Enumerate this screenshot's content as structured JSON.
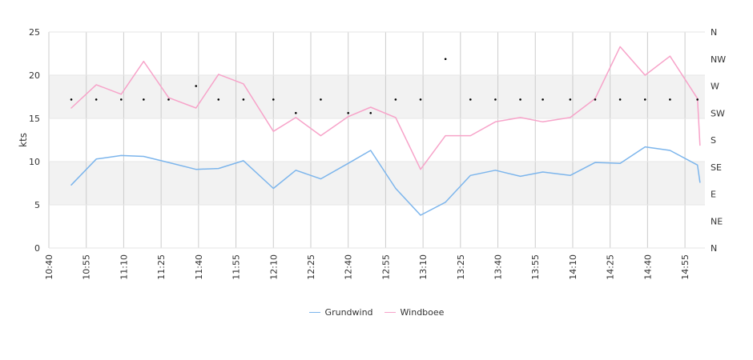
{
  "chart_data": {
    "type": "line",
    "ylabel": "kts",
    "ylim": [
      0,
      25
    ],
    "yticks": [
      0,
      5,
      10,
      15,
      20,
      25
    ],
    "bands": [
      [
        5,
        10
      ],
      [
        15,
        20
      ]
    ],
    "xlim": [
      "10:40",
      "15:03"
    ],
    "xticks": [
      "10:40",
      "10:55",
      "11:10",
      "11:25",
      "11:40",
      "11:55",
      "12:10",
      "12:25",
      "12:40",
      "12:55",
      "13:10",
      "13:25",
      "13:40",
      "13:55",
      "14:10",
      "14:25",
      "14:40",
      "14:55"
    ],
    "grid": {
      "vertical": true,
      "horizontal": true
    },
    "legend_position": "bottom-center",
    "series": [
      {
        "name": "Grundwind",
        "color": "#7cb5ec",
        "x": [
          "10:49",
          "10:59",
          "11:09",
          "11:18",
          "11:28",
          "11:39",
          "11:48",
          "11:58",
          "12:10",
          "12:19",
          "12:29",
          "12:40",
          "12:49",
          "12:59",
          "13:09",
          "13:19",
          "13:29",
          "13:39",
          "13:49",
          "13:58",
          "14:09",
          "14:19",
          "14:29",
          "14:39",
          "14:49",
          "15:00",
          "15:01"
        ],
        "values": [
          7.3,
          10.3,
          10.7,
          10.6,
          9.9,
          9.1,
          9.2,
          10.1,
          6.9,
          9.0,
          8.0,
          9.8,
          11.3,
          6.9,
          3.8,
          5.3,
          8.4,
          9.0,
          8.3,
          8.8,
          8.4,
          9.9,
          9.8,
          11.7,
          11.3,
          9.6,
          7.6
        ]
      },
      {
        "name": "Windboee",
        "color": "#f7a3c9",
        "x": [
          "10:49",
          "10:59",
          "11:09",
          "11:18",
          "11:28",
          "11:39",
          "11:48",
          "11:58",
          "12:10",
          "12:19",
          "12:29",
          "12:40",
          "12:49",
          "12:59",
          "13:09",
          "13:19",
          "13:29",
          "13:39",
          "13:49",
          "13:58",
          "14:09",
          "14:19",
          "14:29",
          "14:39",
          "14:49",
          "15:00",
          "15:01"
        ],
        "values": [
          16.2,
          18.9,
          17.8,
          21.6,
          17.4,
          16.2,
          20.1,
          19.0,
          13.5,
          15.1,
          13.0,
          15.2,
          16.3,
          15.1,
          9.1,
          13.0,
          13.0,
          14.6,
          15.1,
          14.6,
          15.1,
          17.3,
          23.3,
          20.0,
          22.2,
          17.3,
          11.9
        ]
      }
    ],
    "direction_axis": {
      "labels": [
        "N",
        "NE",
        "E",
        "SE",
        "S",
        "SW",
        "W",
        "NW",
        "N"
      ],
      "range": [
        0,
        360
      ]
    },
    "direction_points": {
      "x": [
        "10:49",
        "10:59",
        "11:09",
        "11:18",
        "11:28",
        "11:39",
        "11:48",
        "11:58",
        "12:10",
        "12:19",
        "12:29",
        "12:40",
        "12:49",
        "12:59",
        "13:09",
        "13:19",
        "13:29",
        "13:39",
        "13:49",
        "13:58",
        "14:09",
        "14:19",
        "14:29",
        "14:39",
        "14:49",
        "15:00"
      ],
      "values": [
        247.5,
        247.5,
        247.5,
        247.5,
        247.5,
        270,
        247.5,
        247.5,
        247.5,
        225,
        247.5,
        225,
        225,
        247.5,
        247.5,
        315,
        247.5,
        247.5,
        247.5,
        247.5,
        247.5,
        247.5,
        247.5,
        247.5,
        247.5,
        247.5
      ]
    }
  }
}
